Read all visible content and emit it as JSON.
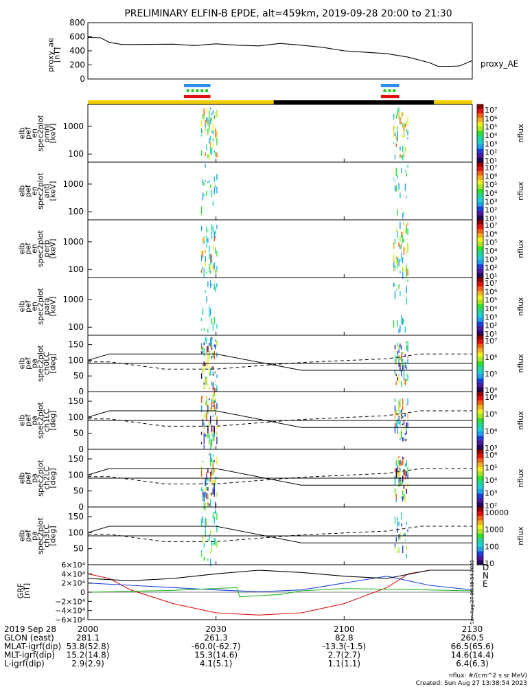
{
  "title": "PRELIMINARY ELFIN-B EPDE, alt=459km, 2019-09-28 20:00 to 21:30",
  "colors": {
    "line": "#000000",
    "orbit_day": "#f2cc00",
    "orbit_night": "#000000",
    "bar_blue": "#2f8ff0",
    "bar_green": "#22cc22",
    "bar_red": "#dd1111",
    "grf_d": "#dd1111",
    "grf_n": "#1a3fd8",
    "grf_e": "#22bb22"
  },
  "colorbar_palette": [
    "#2a0060",
    "#4a1aa0",
    "#1f3fd8",
    "#1fa0f0",
    "#1fd0d0",
    "#20d890",
    "#30e030",
    "#a8e820",
    "#f0f020",
    "#f0b020",
    "#f06010",
    "#e01010",
    "#900000"
  ],
  "panels": [
    {
      "ylabel": [
        "elb",
        "pef",
        "en",
        "spec2plot",
        "omni",
        "[keV]"
      ],
      "ticks": [
        "1000",
        "100"
      ],
      "cbar_ticks": [
        "10⁷",
        "10⁶",
        "10⁵",
        "10⁴",
        "10³",
        "10²",
        "10¹"
      ],
      "cbar_label": "nflux"
    },
    {
      "ylabel": [
        "elb",
        "pef",
        "en",
        "spec2plot",
        "anti",
        "[keV]"
      ],
      "ticks": [
        "1000",
        "100"
      ],
      "cbar_ticks": [
        "10⁷",
        "10⁶",
        "10⁵",
        "10⁴",
        "10³",
        "10²",
        "10¹"
      ],
      "cbar_label": "nflux"
    },
    {
      "ylabel": [
        "elb",
        "pef",
        "en",
        "spec2plot",
        "perp",
        "[keV]"
      ],
      "ticks": [
        "1000",
        "100"
      ],
      "cbar_ticks": [
        "10⁷",
        "10⁶",
        "10⁵",
        "10⁴",
        "10³",
        "10²",
        "10¹"
      ],
      "cbar_label": "nflux"
    },
    {
      "ylabel": [
        "elb",
        "pef",
        "en",
        "spec2plot",
        "para",
        "[keV]"
      ],
      "ticks": [
        "1000",
        "100"
      ],
      "cbar_ticks": [
        "10⁷",
        "10⁶",
        "10⁵",
        "10⁴",
        "10³",
        "10²",
        "10¹"
      ],
      "cbar_label": "nflux"
    },
    {
      "ylabel": [
        "elb",
        "pef",
        "pa",
        "spec2plot",
        "ch0LC",
        "[deg]"
      ],
      "ticks": [
        "150",
        "100",
        "50",
        "0"
      ],
      "cbar_ticks": [
        "10⁷",
        "10⁶",
        "10⁵",
        "10⁴"
      ],
      "cbar_label": "nflux"
    },
    {
      "ylabel": [
        "elb",
        "pef",
        "pa",
        "spec2plot",
        "ch1LC",
        "[deg]"
      ],
      "ticks": [
        "150",
        "100",
        "50",
        "0"
      ],
      "cbar_ticks": [
        "10⁶",
        "10⁵",
        "10⁴",
        "10³"
      ],
      "cbar_label": "nflux"
    },
    {
      "ylabel": [
        "elb",
        "pef",
        "pa",
        "spec2plot",
        "ch2LC",
        "[deg]"
      ],
      "ticks": [
        "150",
        "100",
        "50",
        "0"
      ],
      "cbar_ticks": [
        "10⁶",
        "10⁵",
        "10⁴",
        "10³",
        "10²"
      ],
      "cbar_label": "nflux"
    },
    {
      "ylabel": [
        "elb",
        "pef",
        "pa",
        "spec2plot",
        "ch3LC",
        "[deg]"
      ],
      "ticks": [
        "150",
        "100",
        "50"
      ],
      "cbar_ticks": [
        "10000",
        "1000",
        "100",
        "10"
      ],
      "cbar_label": "nflux"
    }
  ],
  "chart_data": {
    "type": "line",
    "time_range_minutes": [
      0,
      90
    ],
    "time_axis_label": "2019 Sep 28",
    "proxy_ae": {
      "ylabel": [
        "proxy_ae",
        "[nT]"
      ],
      "legend": "proxy_AE",
      "ylim": [
        0,
        800
      ],
      "ticks": [
        "800",
        "600",
        "400",
        "200",
        "0"
      ],
      "x": [
        0,
        3,
        5,
        8,
        10,
        20,
        25,
        30,
        35,
        40,
        45,
        50,
        55,
        60,
        70,
        75,
        80,
        82,
        85,
        87,
        90
      ],
      "y": [
        590,
        585,
        520,
        490,
        490,
        495,
        475,
        500,
        480,
        470,
        505,
        480,
        450,
        400,
        360,
        310,
        230,
        180,
        180,
        185,
        260
      ]
    },
    "pa_lines_deg": {
      "solid": {
        "x": [
          0,
          2,
          5,
          30,
          50,
          78,
          90
        ],
        "y": [
          100,
          108,
          120,
          120,
          68,
          68,
          68
        ]
      },
      "dashed": {
        "x": [
          0,
          5,
          18,
          30,
          50,
          70,
          78,
          90
        ],
        "y": [
          95,
          95,
          72,
          72,
          93,
          105,
          120,
          120
        ]
      }
    },
    "grf": {
      "ylabel": [
        "GRF",
        "[nT]"
      ],
      "ylim": [
        -60000,
        60000
      ],
      "ticks": [
        "6×10⁴",
        "4×10⁴",
        "2×10⁴",
        "0",
        "−2×10⁴",
        "−4×10⁴",
        "−6×10⁴"
      ],
      "series": [
        {
          "name": "D",
          "x": [
            0,
            5,
            10,
            20,
            30,
            40,
            50,
            60,
            70,
            75,
            80,
            90
          ],
          "y": [
            40000,
            30000,
            5000,
            -25000,
            -45000,
            -50000,
            -45000,
            -25000,
            10000,
            40000,
            48000,
            48000
          ]
        },
        {
          "name": "N",
          "x": [
            0,
            10,
            20,
            30,
            40,
            50,
            60,
            70,
            80,
            90
          ],
          "y": [
            20000,
            15000,
            10000,
            5000,
            1000,
            5000,
            20000,
            35000,
            15000,
            5000
          ]
        },
        {
          "name": "E",
          "x": [
            0,
            10,
            20,
            35,
            35.5,
            45,
            50,
            60,
            80,
            90
          ],
          "y": [
            0,
            2000,
            4000,
            10000,
            -10000,
            -5000,
            3000,
            8000,
            5000,
            3000
          ]
        },
        {
          "name": "total",
          "x": [
            0,
            10,
            20,
            30,
            40,
            50,
            60,
            70,
            80,
            90
          ],
          "y": [
            30000,
            25000,
            30000,
            40000,
            48000,
            43000,
            35000,
            30000,
            48000,
            48000
          ]
        }
      ],
      "legend": [
        "D",
        "N",
        "E"
      ]
    }
  },
  "x_labels": [
    "2000",
    "2030",
    "2100",
    "2130"
  ],
  "ephemeris": [
    {
      "label": "2019 Sep 28",
      "values": [
        "2000",
        "2030",
        "2100",
        "2130"
      ]
    },
    {
      "label": "GLON (east)",
      "values": [
        "281.1",
        "261.3",
        "82.8",
        "260.5"
      ]
    },
    {
      "label": "MLAT-igrf(dip)",
      "values": [
        "53.8(52.8)",
        "-60.0(-62.7)",
        "-13.3(-1.5)",
        "66.5(65.6)"
      ]
    },
    {
      "label": "MLT-igrf(dip)",
      "values": [
        "15.2(14.8)",
        "15.3(14.6)",
        "2.7(2.7)",
        "14.6(14.4)"
      ]
    },
    {
      "label": "L-igrf(dip)",
      "values": [
        "2.9(2.9)",
        "4.1(5.1)",
        "1.1(1.1)",
        "6.4(6.3)"
      ]
    }
  ],
  "footer": {
    "units": "nflux: #/(cm^2 s sr MeV)",
    "created": "Created: Sun Aug 27 13:38:54 2023",
    "side_stamp": "Sun Aug 27 06:38:54 2023"
  }
}
